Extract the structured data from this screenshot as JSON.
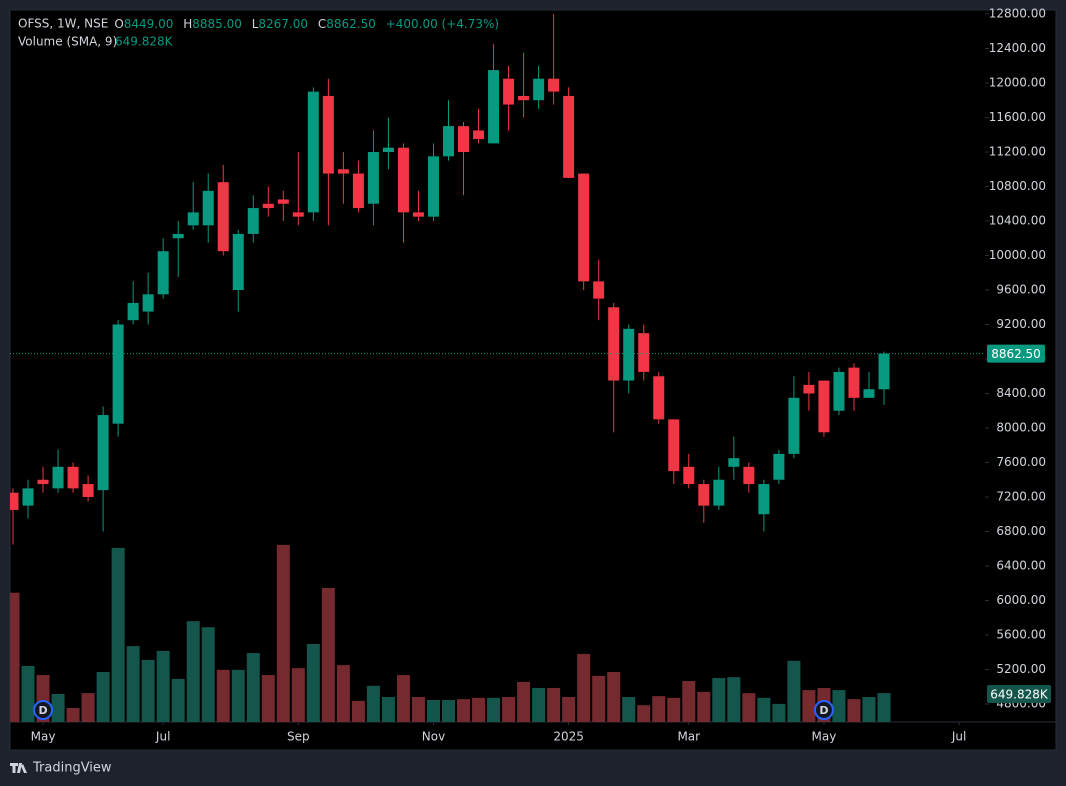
{
  "header": {
    "symbol": "OFSS, 1W, NSE",
    "open_prefix": "O",
    "open": "8449.00",
    "high_prefix": "H",
    "high": "8885.00",
    "low_prefix": "L",
    "low": "8267.00",
    "close_prefix": "C",
    "close": "8862.50",
    "change": "+400.00 (+4.73%)",
    "volume_title": "Volume (SMA, 9)",
    "volume_sma": "649.828K"
  },
  "brand": "TradingView",
  "chart_data": {
    "type": "candlestick",
    "up_color": "#089981",
    "down_color": "#f23645",
    "volume_up_color": "#14564c",
    "volume_down_color": "#742a2f",
    "open": [
      7250,
      7100,
      7400,
      7300,
      7550,
      7350,
      7280,
      8050,
      9250,
      9350,
      9550,
      10200,
      10350,
      10350,
      10850,
      9600,
      10250,
      10600,
      10650,
      10500,
      10500,
      11850,
      11000,
      10950,
      10600,
      11200,
      11250,
      10500,
      10450,
      11150,
      11500,
      11450,
      11300,
      12050,
      11850,
      11800,
      12050,
      11850,
      10950,
      9700,
      9400,
      8550,
      9100,
      8600,
      8100,
      7550,
      7350,
      7100,
      7550,
      7550,
      7000,
      7400,
      7700,
      8500,
      8550,
      8200,
      8700,
      8350,
      8449
    ],
    "high": [
      7300,
      7400,
      7550,
      7750,
      7600,
      7450,
      8250,
      9250,
      9700,
      9800,
      10200,
      10400,
      10850,
      10950,
      11050,
      10300,
      10700,
      10800,
      10750,
      11200,
      11950,
      12050,
      11200,
      11100,
      11450,
      11600,
      11300,
      10750,
      11300,
      11800,
      11550,
      11700,
      12450,
      12200,
      12350,
      12200,
      12800,
      11950,
      10950,
      9950,
      9450,
      9200,
      9200,
      8650,
      8100,
      7700,
      7400,
      7550,
      7900,
      7600,
      7400,
      7750,
      8600,
      8650,
      8550,
      8700,
      8750,
      8650,
      8885
    ],
    "low": [
      6650,
      6950,
      7250,
      7250,
      7250,
      7150,
      6800,
      7900,
      9200,
      9200,
      9500,
      9750,
      10300,
      10150,
      10000,
      9350,
      10150,
      10450,
      10400,
      10350,
      10400,
      10350,
      10600,
      10500,
      10350,
      11000,
      10150,
      10400,
      10400,
      11100,
      10700,
      11300,
      11300,
      11450,
      11600,
      11700,
      11750,
      10900,
      9600,
      9250,
      7950,
      8400,
      8550,
      8050,
      7350,
      7300,
      6900,
      7050,
      7400,
      7250,
      6800,
      7350,
      7650,
      8200,
      7900,
      8150,
      8200,
      8350,
      8267
    ],
    "close": [
      7050,
      7300,
      7350,
      7550,
      7300,
      7200,
      8150,
      9200,
      9450,
      9550,
      10050,
      10250,
      10500,
      10750,
      10050,
      10250,
      10550,
      10550,
      10600,
      10450,
      11900,
      10950,
      10950,
      10550,
      11200,
      11250,
      10500,
      10450,
      11150,
      11500,
      11200,
      11350,
      12150,
      11750,
      11800,
      12050,
      11900,
      10900,
      9700,
      9500,
      8550,
      9150,
      8650,
      8100,
      7500,
      7350,
      7100,
      7400,
      7650,
      7350,
      7350,
      7700,
      8350,
      8400,
      7950,
      8650,
      8350,
      8450,
      8862.5
    ],
    "volume": [
      3000,
      1300,
      1090,
      650,
      325,
      670,
      1160,
      4040,
      1760,
      1440,
      1650,
      1000,
      2340,
      2200,
      1210,
      1210,
      1600,
      1090,
      4110,
      1250,
      1810,
      3110,
      1320,
      490,
      840,
      580,
      1090,
      580,
      510,
      510,
      530,
      560,
      560,
      580,
      930,
      790,
      790,
      580,
      1580,
      1070,
      1160,
      580,
      390,
      600,
      560,
      950,
      700,
      1020,
      1040,
      670,
      560,
      420,
      1420,
      740,
      790,
      740,
      530,
      580,
      670
    ],
    "ylim": [
      4800,
      12800
    ],
    "volume_ylim": [
      0,
      16520
    ],
    "yticks": [
      {
        "value": 4800,
        "label": "4800.00"
      },
      {
        "value": 5200,
        "label": "5200.00"
      },
      {
        "value": 5600,
        "label": "5600.00"
      },
      {
        "value": 6000,
        "label": "6000.00"
      },
      {
        "value": 6400,
        "label": "6400.00"
      },
      {
        "value": 6800,
        "label": "6800.00"
      },
      {
        "value": 7200,
        "label": "7200.00"
      },
      {
        "value": 7600,
        "label": "7600.00"
      },
      {
        "value": 8000,
        "label": "8000.00"
      },
      {
        "value": 8400,
        "label": "8400.00"
      },
      {
        "value": 8800,
        "label": "8800.00"
      },
      {
        "value": 9200,
        "label": "9200.00"
      },
      {
        "value": 9600,
        "label": "9600.00"
      },
      {
        "value": 10000,
        "label": "10000.00"
      },
      {
        "value": 10400,
        "label": "10400.00"
      },
      {
        "value": 10800,
        "label": "10800.00"
      },
      {
        "value": 11200,
        "label": "11200.00"
      },
      {
        "value": 11600,
        "label": "11600.00"
      },
      {
        "value": 12000,
        "label": "12000.00"
      },
      {
        "value": 12400,
        "label": "12400.00"
      },
      {
        "value": 12800,
        "label": "12800.00"
      }
    ],
    "xlim": [
      0,
      63
    ],
    "xticks": [
      {
        "value": 2,
        "label": "May"
      },
      {
        "value": 10,
        "label": "Jul"
      },
      {
        "value": 19,
        "label": "Sep"
      },
      {
        "value": 28,
        "label": "Nov"
      },
      {
        "value": 37,
        "label": "2025"
      },
      {
        "value": 45,
        "label": "Mar"
      },
      {
        "value": 54,
        "label": "May"
      },
      {
        "value": 63,
        "label": "Jul"
      }
    ],
    "markers": [
      {
        "index": 2,
        "label": "D"
      },
      {
        "index": 54,
        "label": "D"
      }
    ]
  }
}
